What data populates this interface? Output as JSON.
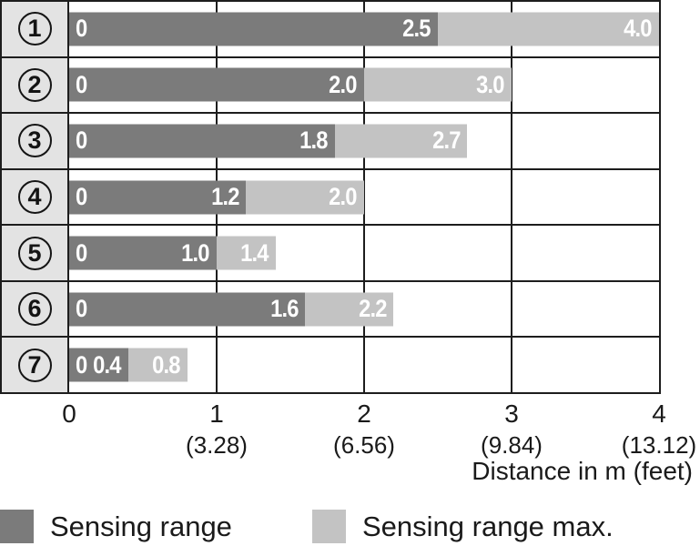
{
  "chart_data": {
    "type": "bar",
    "orientation": "horizontal",
    "title": "",
    "xlabel": "Distance in m (feet)",
    "xlim": [
      0,
      4
    ],
    "grid": "on",
    "rows": [
      {
        "id": "1",
        "zero_label": "0",
        "sensing": 2.5,
        "max": 4.0,
        "sensing_label": "2.5",
        "max_label": "4.0"
      },
      {
        "id": "2",
        "zero_label": "0",
        "sensing": 2.0,
        "max": 3.0,
        "sensing_label": "2.0",
        "max_label": "3.0"
      },
      {
        "id": "3",
        "zero_label": "0",
        "sensing": 1.8,
        "max": 2.7,
        "sensing_label": "1.8",
        "max_label": "2.7"
      },
      {
        "id": "4",
        "zero_label": "0",
        "sensing": 1.2,
        "max": 2.0,
        "sensing_label": "1.2",
        "max_label": "2.0"
      },
      {
        "id": "5",
        "zero_label": "0",
        "sensing": 1.0,
        "max": 1.4,
        "sensing_label": "1.0",
        "max_label": "1.4"
      },
      {
        "id": "6",
        "zero_label": "0",
        "sensing": 1.6,
        "max": 2.2,
        "sensing_label": "1.6",
        "max_label": "2.2"
      },
      {
        "id": "7",
        "zero_label": "0",
        "sensing": 0.4,
        "max": 0.8,
        "sensing_label": "0.4",
        "max_label": "0.8"
      }
    ],
    "x_ticks": [
      {
        "v": 0,
        "m": "0",
        "feet": ""
      },
      {
        "v": 1,
        "m": "1",
        "feet": "(3.28)"
      },
      {
        "v": 2,
        "m": "2",
        "feet": "(6.56)"
      },
      {
        "v": 3,
        "m": "3",
        "feet": "(9.84)"
      },
      {
        "v": 4,
        "m": "4",
        "feet": "(13.12)"
      }
    ],
    "legend": [
      {
        "label": "Sensing range",
        "color": "#7b7b7b"
      },
      {
        "label": "Sensing range max.",
        "color": "#c3c3c3"
      }
    ],
    "colors": {
      "sensing_bar": "#7b7b7b",
      "sensing_max_bar": "#c3c3c3",
      "label_column_bg": "#e3e3e3",
      "border": "#1d1d1d",
      "bar_value_text": "#ffffff"
    }
  }
}
